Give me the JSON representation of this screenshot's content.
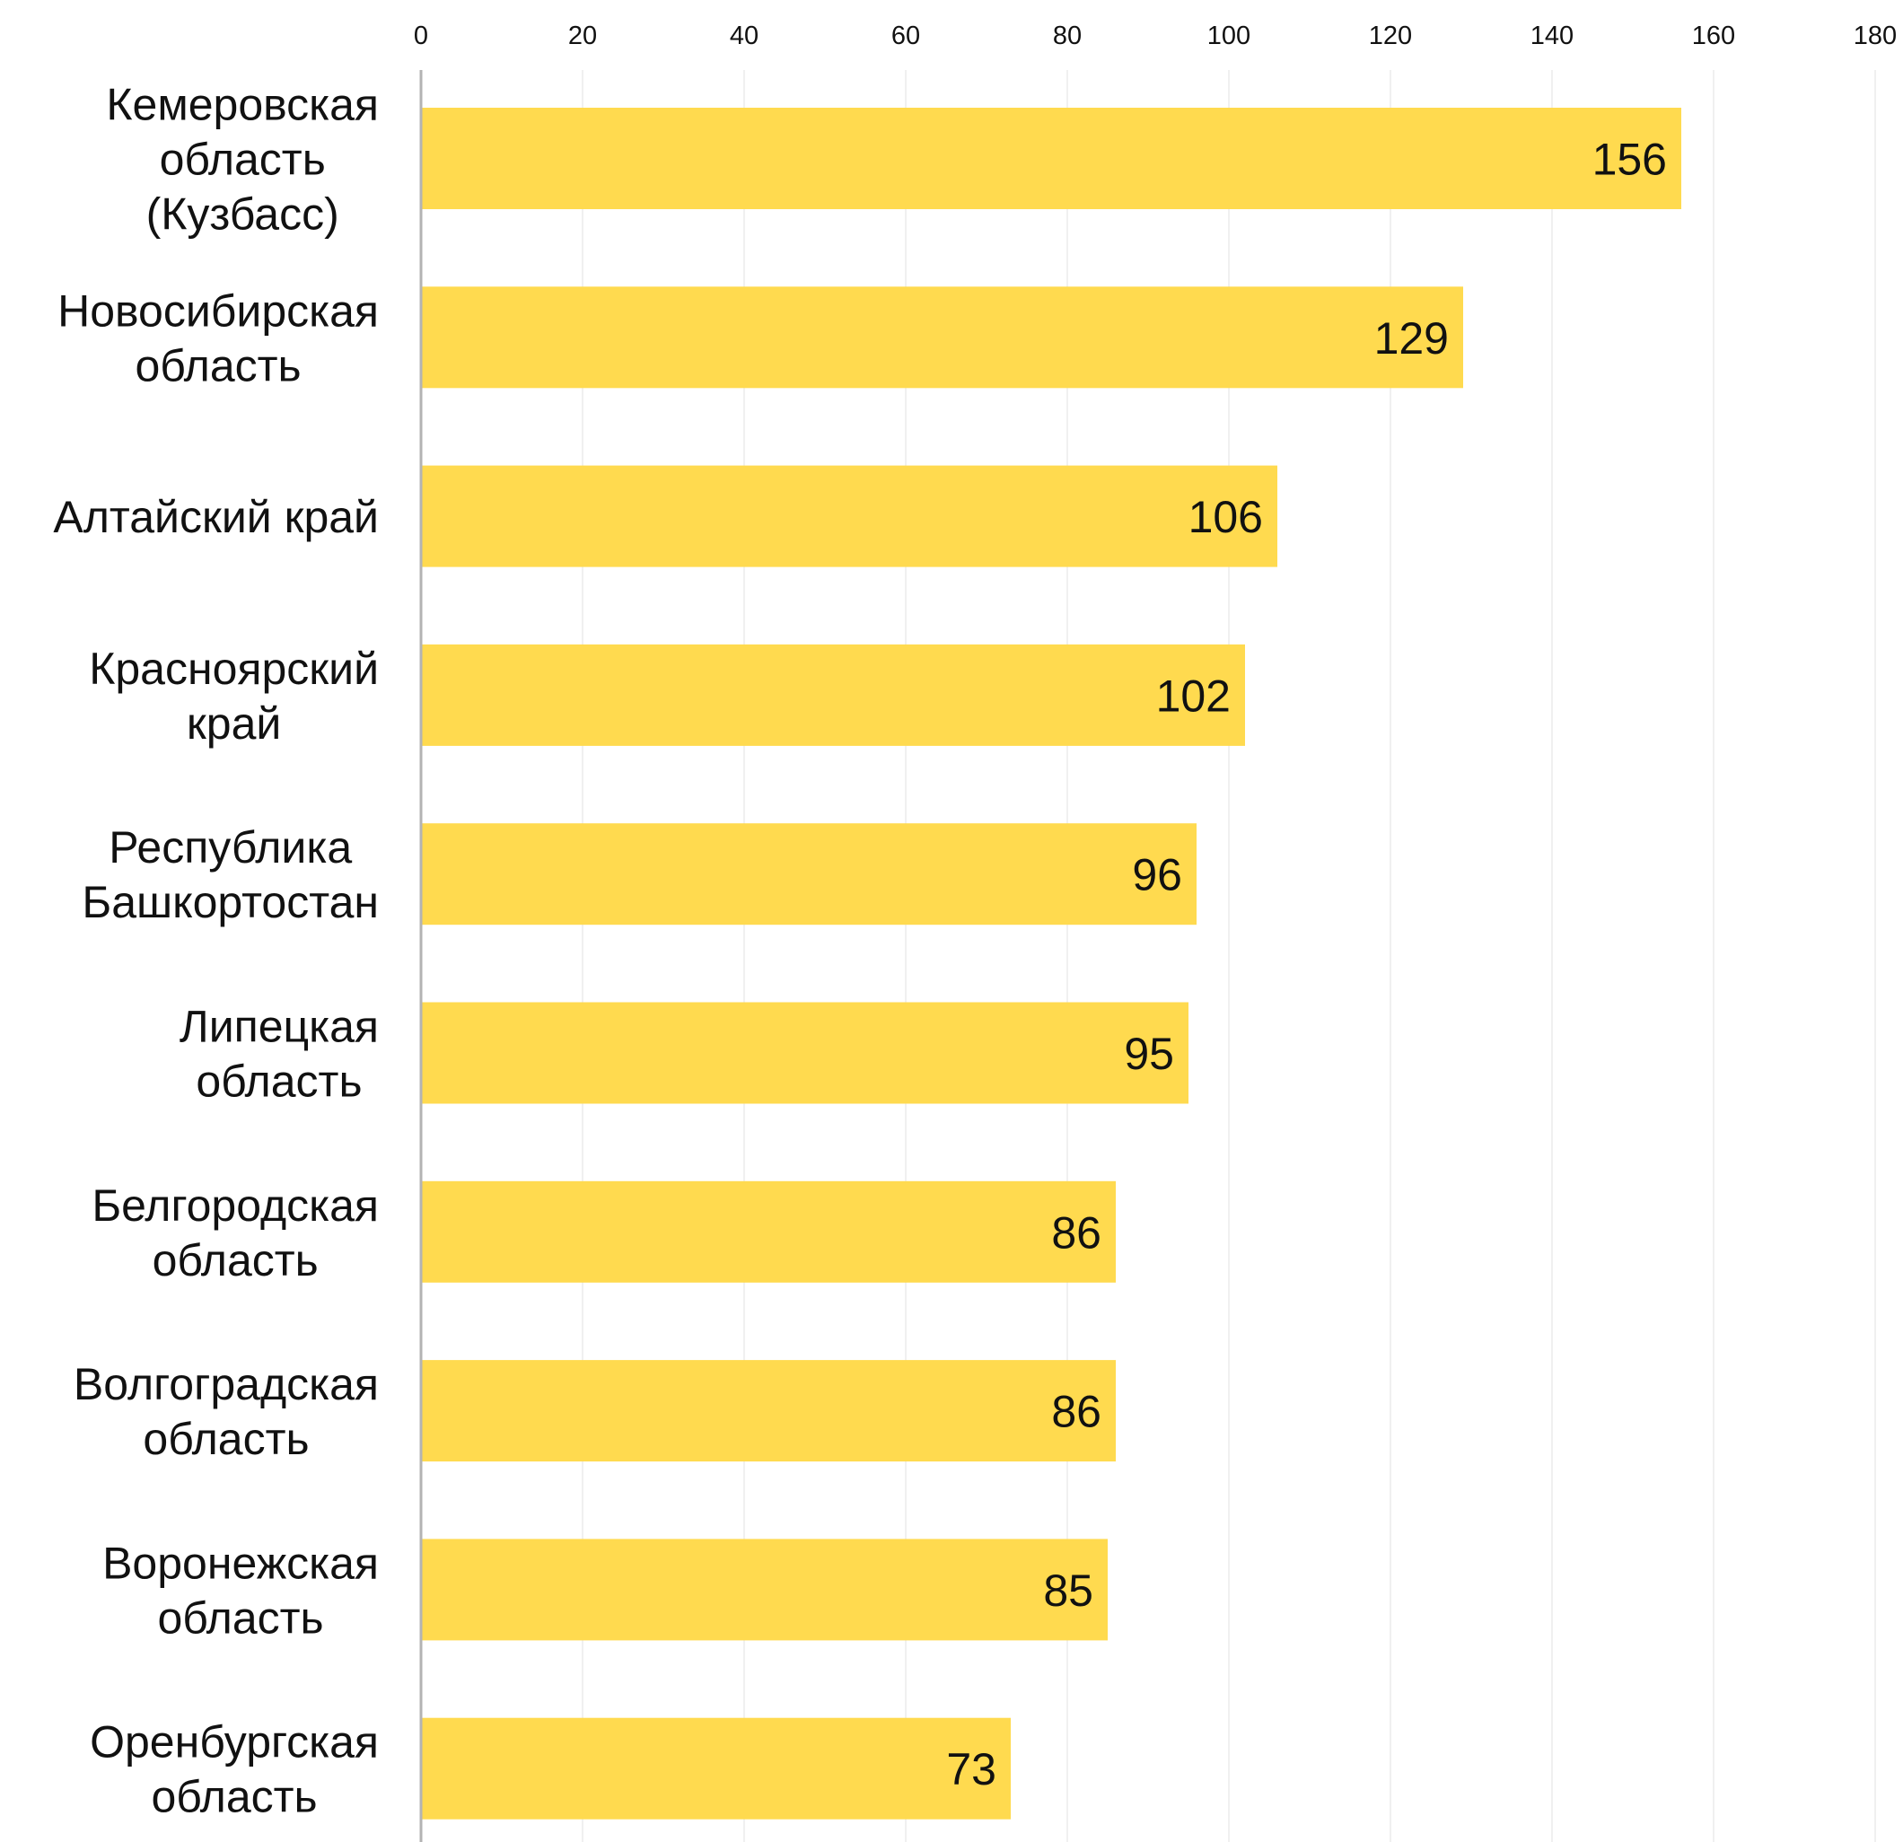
{
  "chart_data": {
    "type": "bar",
    "orientation": "horizontal",
    "title": "",
    "xlabel": "",
    "ylabel": "",
    "xlim": [
      0,
      180
    ],
    "x_ticks": [
      0,
      20,
      40,
      60,
      80,
      100,
      120,
      140,
      160,
      180
    ],
    "x_axis_position": "top",
    "grid": true,
    "legend": "none",
    "bar_color": "#FFDA4F",
    "categories": [
      [
        "Кемеровская",
        "область",
        "(Кузбасс)"
      ],
      [
        "Новосибирская",
        "область"
      ],
      [
        "Алтайский край"
      ],
      [
        "Красноярский",
        "край"
      ],
      [
        "Республика",
        "Башкортостан"
      ],
      [
        "Липецкая",
        "область"
      ],
      [
        "Белгородская",
        "область"
      ],
      [
        "Волгоградская",
        "область"
      ],
      [
        "Воронежская",
        "область"
      ],
      [
        "Оренбургская",
        "область"
      ]
    ],
    "values": [
      156,
      129,
      106,
      102,
      96,
      95,
      86,
      86,
      85,
      73
    ],
    "data_labels": [
      "156",
      "129",
      "106",
      "102",
      "96",
      "95",
      "86",
      "86",
      "85",
      "73"
    ]
  }
}
